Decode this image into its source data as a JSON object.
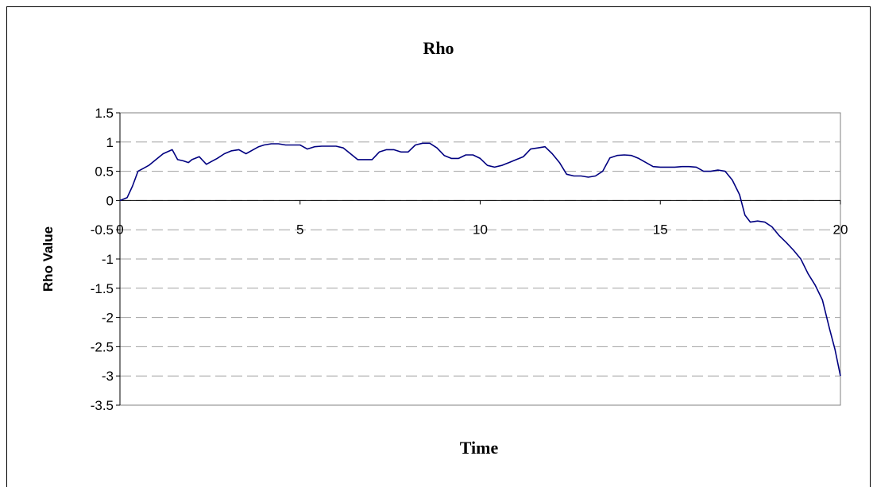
{
  "chart_data": {
    "type": "line",
    "title": "Rho",
    "xlabel": "Time",
    "ylabel": "Rho Value",
    "xlim": [
      0,
      20
    ],
    "ylim": [
      -3.5,
      1.5
    ],
    "x_ticks": [
      "0",
      "5",
      "10",
      "15",
      "20"
    ],
    "y_ticks": [
      "1.5",
      "1",
      "0.5",
      "0",
      "-0.5",
      "-1",
      "-1.5",
      "-2",
      "-2.5",
      "-3",
      "-3.5"
    ],
    "grid": "horizontal dashed",
    "legend": "none",
    "line_color": "#000080",
    "series": [
      {
        "x": [
          0,
          0.2,
          0.35,
          0.5,
          0.65,
          0.8,
          1.0,
          1.2,
          1.45,
          1.6,
          1.75,
          1.9,
          2.0,
          2.2,
          2.4,
          2.55,
          2.7,
          2.9,
          3.1,
          3.3,
          3.5,
          3.7,
          3.85,
          4.0,
          4.2,
          4.4,
          4.6,
          4.8,
          5.0,
          5.2,
          5.4,
          5.6,
          5.8,
          6.0,
          6.2,
          6.4,
          6.6,
          6.8,
          7.0,
          7.2,
          7.4,
          7.6,
          7.8,
          8.0,
          8.2,
          8.4,
          8.6,
          8.8,
          9.0,
          9.2,
          9.4,
          9.6,
          9.8,
          10.0,
          10.2,
          10.4,
          10.6,
          10.8,
          11.0,
          11.2,
          11.4,
          11.6,
          11.8,
          12.0,
          12.2,
          12.4,
          12.6,
          12.8,
          13.0,
          13.2,
          13.4,
          13.6,
          13.8,
          14.0,
          14.2,
          14.4,
          14.6,
          14.8,
          15.0,
          15.2,
          15.4,
          15.6,
          15.8,
          16.0,
          16.2,
          16.4,
          16.6,
          16.8,
          17.0,
          17.2,
          17.35,
          17.5,
          17.7,
          17.9,
          18.1,
          18.3,
          18.5,
          18.7,
          18.9,
          19.1,
          19.3,
          19.5,
          19.7,
          19.85,
          20.0
        ],
        "y": [
          0,
          0.05,
          0.25,
          0.5,
          0.55,
          0.6,
          0.7,
          0.8,
          0.87,
          0.7,
          0.68,
          0.65,
          0.7,
          0.75,
          0.62,
          0.67,
          0.72,
          0.8,
          0.85,
          0.87,
          0.8,
          0.87,
          0.92,
          0.95,
          0.97,
          0.97,
          0.95,
          0.95,
          0.95,
          0.88,
          0.92,
          0.93,
          0.93,
          0.93,
          0.9,
          0.8,
          0.7,
          0.7,
          0.7,
          0.83,
          0.87,
          0.87,
          0.83,
          0.83,
          0.95,
          0.98,
          0.98,
          0.9,
          0.77,
          0.72,
          0.72,
          0.78,
          0.78,
          0.72,
          0.6,
          0.57,
          0.6,
          0.65,
          0.7,
          0.75,
          0.88,
          0.9,
          0.92,
          0.8,
          0.65,
          0.45,
          0.42,
          0.42,
          0.4,
          0.42,
          0.5,
          0.73,
          0.77,
          0.78,
          0.77,
          0.72,
          0.65,
          0.58,
          0.57,
          0.57,
          0.57,
          0.58,
          0.58,
          0.57,
          0.5,
          0.5,
          0.52,
          0.5,
          0.35,
          0.1,
          -0.25,
          -0.37,
          -0.35,
          -0.37,
          -0.45,
          -0.6,
          -0.72,
          -0.85,
          -1.0,
          -1.25,
          -1.45,
          -1.7,
          -2.2,
          -2.55,
          -3.0
        ]
      }
    ]
  }
}
